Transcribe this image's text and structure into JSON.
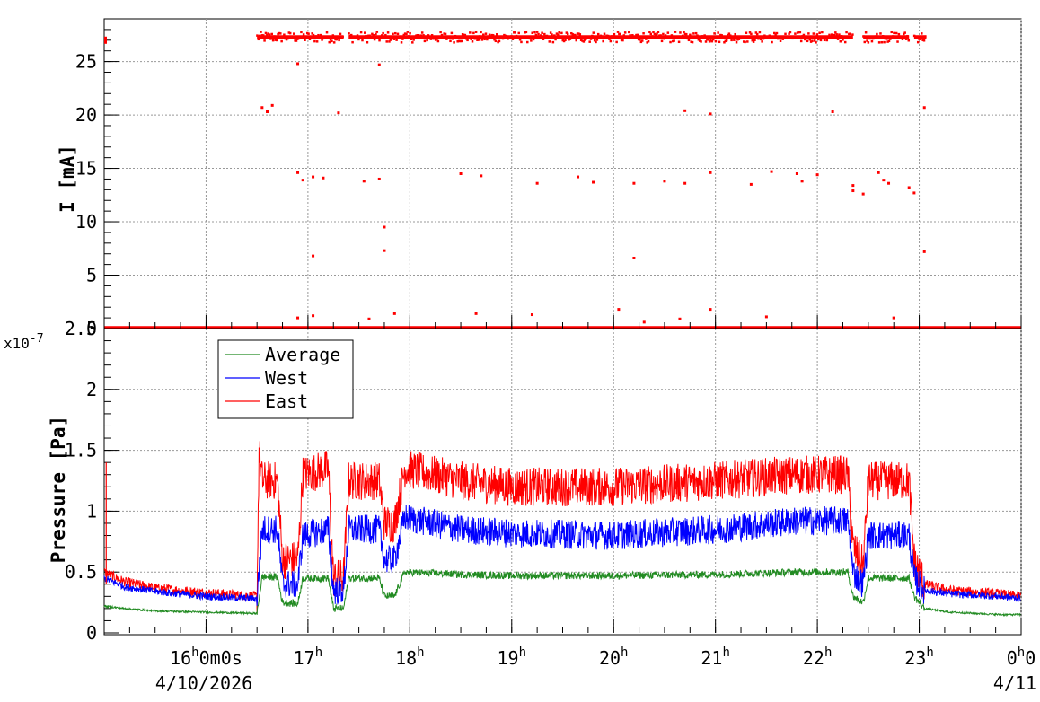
{
  "chart_data": [
    {
      "type": "scatter",
      "panel": "top",
      "ylabel": "I [mA]",
      "ylim": [
        0,
        29
      ],
      "y_ticks": [
        "0",
        "5",
        "10",
        "15",
        "20",
        "25"
      ],
      "grid": true,
      "x_unit": "hours",
      "xlim": [
        15.0,
        24.0
      ],
      "series": [
        {
          "color": "#ff0000",
          "baseline_segments": [
            [
              15.0,
              24.0
            ]
          ],
          "plateau_segments": [
            [
              16.5,
              17.35
            ],
            [
              17.4,
              22.35
            ],
            [
              22.45,
              22.9
            ],
            [
              22.95,
              23.07
            ]
          ],
          "plateau_level": 27.3,
          "outliers": [
            [
              16.55,
              20.7
            ],
            [
              16.6,
              20.3
            ],
            [
              16.65,
              20.9
            ],
            [
              16.9,
              24.8
            ],
            [
              16.9,
              14.6
            ],
            [
              16.95,
              13.9
            ],
            [
              17.05,
              14.2
            ],
            [
              17.05,
              6.8
            ],
            [
              17.15,
              14.1
            ],
            [
              17.3,
              20.2
            ],
            [
              17.55,
              13.8
            ],
            [
              17.7,
              24.7
            ],
            [
              17.7,
              14.0
            ],
            [
              17.75,
              9.5
            ],
            [
              17.75,
              7.3
            ],
            [
              18.5,
              14.5
            ],
            [
              18.7,
              14.3
            ],
            [
              19.25,
              13.6
            ],
            [
              19.65,
              14.2
            ],
            [
              19.8,
              13.7
            ],
            [
              20.2,
              13.6
            ],
            [
              20.2,
              6.6
            ],
            [
              20.5,
              13.8
            ],
            [
              20.7,
              20.4
            ],
            [
              20.7,
              13.6
            ],
            [
              20.95,
              20.1
            ],
            [
              20.95,
              14.6
            ],
            [
              21.35,
              13.5
            ],
            [
              21.55,
              14.7
            ],
            [
              21.8,
              14.5
            ],
            [
              21.85,
              13.8
            ],
            [
              22.0,
              14.4
            ],
            [
              22.15,
              20.3
            ],
            [
              22.35,
              13.4
            ],
            [
              22.35,
              12.9
            ],
            [
              22.45,
              12.6
            ],
            [
              22.6,
              14.6
            ],
            [
              22.65,
              13.9
            ],
            [
              22.7,
              13.6
            ],
            [
              22.9,
              13.2
            ],
            [
              22.95,
              12.7
            ],
            [
              23.05,
              20.7
            ],
            [
              23.05,
              7.2
            ],
            [
              16.9,
              1.0
            ],
            [
              17.05,
              1.2
            ],
            [
              17.6,
              0.9
            ],
            [
              17.85,
              1.4
            ],
            [
              18.65,
              1.4
            ],
            [
              19.2,
              1.3
            ],
            [
              20.05,
              1.8
            ],
            [
              20.3,
              0.6
            ],
            [
              20.65,
              0.9
            ],
            [
              20.95,
              1.8
            ],
            [
              21.5,
              1.1
            ],
            [
              22.75,
              1.0
            ]
          ]
        }
      ]
    },
    {
      "type": "line",
      "panel": "bottom",
      "ylabel": "Pressure [Pa]",
      "y_exponent": "x10",
      "y_exponent_power": "-7",
      "ylim": [
        0,
        2.5
      ],
      "y_ticks": [
        "0",
        "0.5",
        "1",
        "1.5",
        "2",
        "2.5"
      ],
      "grid": true,
      "legend_position": "top-left",
      "x_unit": "hours",
      "xlim": [
        15.0,
        24.0
      ],
      "x_tick_labels": [
        {
          "h": "16",
          "rest": "0m0s",
          "date": "4/10/2026"
        },
        {
          "h": "17",
          "rest": ""
        },
        {
          "h": "18",
          "rest": ""
        },
        {
          "h": "19",
          "rest": ""
        },
        {
          "h": "20",
          "rest": ""
        },
        {
          "h": "21",
          "rest": ""
        },
        {
          "h": "22",
          "rest": ""
        },
        {
          "h": "23",
          "rest": ""
        },
        {
          "h": "0",
          "rest": "0",
          "date": "4/11"
        }
      ],
      "series": [
        {
          "name": "Average",
          "color": "#228b22",
          "points": [
            [
              15.0,
              0.22
            ],
            [
              15.2,
              0.2
            ],
            [
              15.5,
              0.18
            ],
            [
              16.0,
              0.17
            ],
            [
              16.5,
              0.16
            ],
            [
              16.55,
              0.46
            ],
            [
              16.7,
              0.46
            ],
            [
              16.75,
              0.25
            ],
            [
              16.9,
              0.24
            ],
            [
              16.95,
              0.45
            ],
            [
              17.2,
              0.45
            ],
            [
              17.25,
              0.2
            ],
            [
              17.35,
              0.2
            ],
            [
              17.4,
              0.45
            ],
            [
              17.7,
              0.45
            ],
            [
              17.75,
              0.3
            ],
            [
              17.85,
              0.3
            ],
            [
              17.95,
              0.5
            ],
            [
              18.5,
              0.48
            ],
            [
              19.0,
              0.47
            ],
            [
              20.0,
              0.47
            ],
            [
              21.0,
              0.48
            ],
            [
              21.8,
              0.5
            ],
            [
              22.3,
              0.5
            ],
            [
              22.35,
              0.3
            ],
            [
              22.45,
              0.25
            ],
            [
              22.5,
              0.45
            ],
            [
              22.9,
              0.45
            ],
            [
              22.95,
              0.3
            ],
            [
              23.05,
              0.2
            ],
            [
              23.3,
              0.17
            ],
            [
              23.8,
              0.15
            ],
            [
              24.0,
              0.15
            ]
          ],
          "noise": 0.03
        },
        {
          "name": "West",
          "color": "#0000ff",
          "points": [
            [
              15.0,
              0.45
            ],
            [
              15.2,
              0.38
            ],
            [
              15.5,
              0.34
            ],
            [
              16.0,
              0.3
            ],
            [
              16.5,
              0.28
            ],
            [
              16.55,
              0.85
            ],
            [
              16.7,
              0.85
            ],
            [
              16.75,
              0.4
            ],
            [
              16.9,
              0.4
            ],
            [
              16.95,
              0.8
            ],
            [
              17.2,
              0.85
            ],
            [
              17.25,
              0.35
            ],
            [
              17.35,
              0.35
            ],
            [
              17.4,
              0.85
            ],
            [
              17.7,
              0.85
            ],
            [
              17.75,
              0.6
            ],
            [
              17.85,
              0.6
            ],
            [
              17.95,
              0.95
            ],
            [
              18.5,
              0.85
            ],
            [
              19.0,
              0.82
            ],
            [
              20.0,
              0.8
            ],
            [
              21.0,
              0.85
            ],
            [
              21.8,
              0.92
            ],
            [
              22.3,
              0.92
            ],
            [
              22.35,
              0.5
            ],
            [
              22.45,
              0.4
            ],
            [
              22.5,
              0.8
            ],
            [
              22.9,
              0.8
            ],
            [
              22.95,
              0.45
            ],
            [
              23.05,
              0.35
            ],
            [
              23.3,
              0.32
            ],
            [
              23.8,
              0.3
            ],
            [
              24.0,
              0.28
            ]
          ],
          "noise": 0.12
        },
        {
          "name": "East",
          "color": "#ff0000",
          "points": [
            [
              15.0,
              0.5
            ],
            [
              15.2,
              0.42
            ],
            [
              15.5,
              0.37
            ],
            [
              16.0,
              0.33
            ],
            [
              16.5,
              0.3
            ],
            [
              16.52,
              1.5
            ],
            [
              16.55,
              1.25
            ],
            [
              16.7,
              1.25
            ],
            [
              16.75,
              0.6
            ],
            [
              16.9,
              0.6
            ],
            [
              16.95,
              1.3
            ],
            [
              17.2,
              1.35
            ],
            [
              17.25,
              0.45
            ],
            [
              17.35,
              0.45
            ],
            [
              17.4,
              1.25
            ],
            [
              17.7,
              1.25
            ],
            [
              17.75,
              0.9
            ],
            [
              17.85,
              0.9
            ],
            [
              17.95,
              1.35
            ],
            [
              18.5,
              1.25
            ],
            [
              19.0,
              1.2
            ],
            [
              20.0,
              1.2
            ],
            [
              21.0,
              1.25
            ],
            [
              21.8,
              1.3
            ],
            [
              22.3,
              1.3
            ],
            [
              22.35,
              0.7
            ],
            [
              22.45,
              0.55
            ],
            [
              22.5,
              1.25
            ],
            [
              22.9,
              1.25
            ],
            [
              22.95,
              0.6
            ],
            [
              23.05,
              0.4
            ],
            [
              23.3,
              0.35
            ],
            [
              23.8,
              0.32
            ],
            [
              24.0,
              0.3
            ]
          ],
          "noise": 0.16
        }
      ]
    }
  ]
}
